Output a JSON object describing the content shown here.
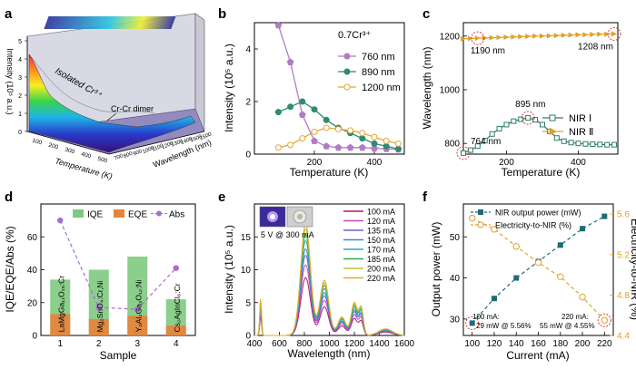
{
  "colors": {
    "c760": "#b07cc6",
    "c890": "#2e8b6e",
    "c1200": "#e3a72f",
    "nir1": "#2e7d6b",
    "nir2": "#e0a12a",
    "iqe": "#7fc97f",
    "eqe": "#e8823a",
    "abs": "#a66dd4",
    "power": "#1e6b78",
    "eff": "#e0a12a",
    "circle": "#d83a3a"
  },
  "panels": {
    "a": {
      "label": "a",
      "z_axis": "Intensity (10⁵ a.u.)",
      "z_ticks": [
        "0",
        "1",
        "2",
        "3",
        "4",
        "5"
      ],
      "x_axis": "Temperature (K)",
      "x_ticks": [
        "100",
        "200",
        "300",
        "400",
        "500"
      ],
      "y_axis": "Wavelength (nm)",
      "y_ticks": [
        "700",
        "800",
        "900",
        "1000",
        "1100",
        "1200",
        "1300",
        "1400",
        "1500",
        "1600"
      ],
      "annotation_1": "Isolated Cr³⁺",
      "annotation_2": "Cr-Cr dimer"
    },
    "b": {
      "label": "b",
      "ylabel": "Intensity (10⁵ a.u.)",
      "xlabel": "Temperature (K)",
      "note": "0.7Cr³⁺"
    },
    "c": {
      "label": "c",
      "ylabel": "Wavelength (nm)",
      "xlabel": "Temperature (K)",
      "callouts": [
        "1190 nm",
        "1208 nm",
        "895 nm",
        "764 nm"
      ]
    },
    "d": {
      "label": "d",
      "ylabel": "IQE/EQE/Abs (%)",
      "xlabel": "Sample",
      "sample_names": [
        "LaMgGa₁₁O₁₉:Cr",
        "Mg₂SnO₄:Cr,Ni",
        "Y₃Al₂Ga₃O₁₂:Ni",
        "Cs₂AgInCl₆:Cr"
      ]
    },
    "e": {
      "label": "e",
      "ylabel": "Intensity (10⁵ a.u.)",
      "xlabel": "Wavelength (nm)",
      "inset_caption": "5 V @ 300 mA"
    },
    "f": {
      "label": "f",
      "ylabel_left": "Output power (mW)",
      "ylabel_right": "Electricity-to-NIR (%)",
      "xlabel": "Current (mA)",
      "note_1a": "100 mA:",
      "note_1b": "29 mW @ 5.56%",
      "note_2a": "220 mA:",
      "note_2b": "55 mW @ 4.55%"
    }
  },
  "chart_data": [
    {
      "panel": "b",
      "type": "line",
      "xlim": [
        0,
        500
      ],
      "ylim": [
        0,
        5
      ],
      "xticks": [
        200,
        400
      ],
      "yticks": [
        0,
        2,
        4
      ],
      "x": [
        80,
        120,
        160,
        200,
        240,
        280,
        320,
        360,
        400,
        440,
        480
      ],
      "series": [
        {
          "name": "760 nm",
          "values": [
            4.9,
            3.5,
            1.5,
            0.5,
            0.3,
            0.25,
            0.25,
            0.25,
            0.22,
            0.2,
            0.18
          ]
        },
        {
          "name": "890 nm",
          "values": [
            1.6,
            1.8,
            2.0,
            1.7,
            1.3,
            1.0,
            0.8,
            0.6,
            0.4,
            0.3,
            0.2
          ]
        },
        {
          "name": "1200 nm",
          "values": [
            0.25,
            0.35,
            0.6,
            0.85,
            1.0,
            0.95,
            0.9,
            0.8,
            0.65,
            0.5,
            0.4
          ]
        }
      ]
    },
    {
      "panel": "c",
      "type": "line",
      "xlim": [
        80,
        510
      ],
      "ylim": [
        760,
        1250
      ],
      "xticks": [
        200,
        400
      ],
      "yticks": [
        800,
        1000,
        1200
      ],
      "x": [
        80,
        100,
        120,
        140,
        160,
        180,
        200,
        220,
        240,
        260,
        280,
        300,
        320,
        340,
        360,
        380,
        400,
        420,
        440,
        460,
        480,
        500
      ],
      "series": [
        {
          "name": "NIR Ⅰ",
          "values": [
            764,
            775,
            790,
            810,
            835,
            855,
            870,
            883,
            890,
            895,
            888,
            870,
            845,
            820,
            808,
            803,
            800,
            798,
            797,
            796,
            795,
            795
          ]
        },
        {
          "name": "NIR Ⅱ",
          "values": [
            1190,
            1191,
            1192,
            1193,
            1194,
            1195,
            1196,
            1197,
            1198,
            1199,
            1200,
            1200,
            1201,
            1202,
            1203,
            1204,
            1205,
            1205,
            1206,
            1207,
            1207,
            1208
          ]
        }
      ]
    },
    {
      "panel": "d",
      "type": "bar",
      "categories": [
        "1",
        "2",
        "3",
        "4"
      ],
      "ylim": [
        0,
        80
      ],
      "yticks": [
        0,
        20,
        40,
        60
      ],
      "series": [
        {
          "name": "IQE",
          "values": [
            34,
            40,
            48,
            22
          ]
        },
        {
          "name": "EQE",
          "values": [
            13,
            10,
            12,
            6
          ]
        },
        {
          "name": "Abs",
          "values": [
            70,
            17,
            16,
            41
          ]
        }
      ]
    },
    {
      "panel": "e",
      "type": "line",
      "xlim": [
        400,
        1600
      ],
      "ylim": [
        0,
        20
      ],
      "xticks": [
        400,
        600,
        800,
        1000,
        1200,
        1400,
        1600
      ],
      "yticks": [
        0,
        5,
        10,
        15
      ],
      "currents": [
        "100 mA",
        "120 mA",
        "135 mA",
        "150 mA",
        "170 mA",
        "185 mA",
        "200 mA",
        "220 mA"
      ],
      "peak_values": [
        9.0,
        11.0,
        12.5,
        13.5,
        14.8,
        15.8,
        16.6,
        17.4
      ]
    },
    {
      "panel": "f",
      "type": "line",
      "x": [
        100,
        120,
        140,
        160,
        180,
        200,
        220
      ],
      "xlim": [
        92,
        228
      ],
      "xticks": [
        100,
        120,
        140,
        160,
        180,
        200,
        220
      ],
      "ylim_left": [
        26,
        58
      ],
      "yticks_left": [
        30,
        40,
        50
      ],
      "ylim_right": [
        4.4,
        5.7
      ],
      "yticks_right": [
        4.4,
        4.8,
        5.2,
        5.6
      ],
      "series": [
        {
          "name": "NIR output power (mW)",
          "axis": "left",
          "values": [
            29,
            35,
            40,
            44,
            48,
            52,
            55
          ]
        },
        {
          "name": "Electricity-to-NIR (%)",
          "axis": "right",
          "values": [
            5.56,
            5.45,
            5.28,
            5.12,
            4.98,
            4.78,
            4.55
          ]
        }
      ]
    }
  ]
}
